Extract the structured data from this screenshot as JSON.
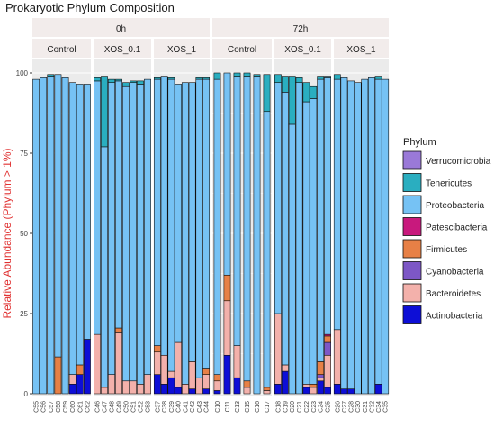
{
  "chart_data": {
    "type": "bar",
    "stacked": true,
    "title": "Prokaryotic Phylum Composition",
    "ylabel": "Relative Abundance (Phylum > 1%)",
    "xlabel": "",
    "ylim": [
      0,
      100
    ],
    "yticks": [
      0,
      25,
      50,
      75,
      100
    ],
    "grid": true,
    "legend_position": "right",
    "legend_title": "Phylum",
    "time_strips": [
      "0h",
      "72h"
    ],
    "treatment_labels": [
      "Control",
      "XOS_0.1",
      "XOS_1"
    ],
    "phyla": [
      {
        "name": "Verrucomicrobia",
        "color": "#9a79d8"
      },
      {
        "name": "Tenericutes",
        "color": "#2aaec0"
      },
      {
        "name": "Proteobacteria",
        "color": "#76c2f4"
      },
      {
        "name": "Patescibacteria",
        "color": "#c8197d"
      },
      {
        "name": "Firmicutes",
        "color": "#e78046"
      },
      {
        "name": "Cyanobacteria",
        "color": "#7d57c6"
      },
      {
        "name": "Bacteroidetes",
        "color": "#f3b1ab"
      },
      {
        "name": "Actinobacteria",
        "color": "#0d0ed6"
      }
    ],
    "panels": [
      {
        "time": "0h",
        "treatment": "Control",
        "samples": [
          {
            "id": "C55",
            "values": {
              "Actinobacteria": 0,
              "Bacteroidetes": 0,
              "Cyanobacteria": 0,
              "Firmicutes": 0,
              "Patescibacteria": 0,
              "Proteobacteria": 98,
              "Tenericutes": 0,
              "Verrucomicrobia": 0
            }
          },
          {
            "id": "C56",
            "values": {
              "Actinobacteria": 0,
              "Bacteroidetes": 0,
              "Cyanobacteria": 0,
              "Firmicutes": 0,
              "Patescibacteria": 0,
              "Proteobacteria": 98.5,
              "Tenericutes": 0,
              "Verrucomicrobia": 0
            }
          },
          {
            "id": "C57",
            "values": {
              "Actinobacteria": 0,
              "Bacteroidetes": 0,
              "Cyanobacteria": 0,
              "Firmicutes": 0,
              "Patescibacteria": 0,
              "Proteobacteria": 99,
              "Tenericutes": 0.5,
              "Verrucomicrobia": 0
            }
          },
          {
            "id": "C58",
            "values": {
              "Actinobacteria": 0,
              "Bacteroidetes": 0,
              "Cyanobacteria": 0,
              "Firmicutes": 11.5,
              "Patescibacteria": 0,
              "Proteobacteria": 88,
              "Tenericutes": 0,
              "Verrucomicrobia": 0
            }
          },
          {
            "id": "C59",
            "values": {
              "Actinobacteria": 0,
              "Bacteroidetes": 0,
              "Cyanobacteria": 0,
              "Firmicutes": 0,
              "Patescibacteria": 0,
              "Proteobacteria": 98.5,
              "Tenericutes": 0,
              "Verrucomicrobia": 0
            }
          },
          {
            "id": "C60",
            "values": {
              "Actinobacteria": 3,
              "Bacteroidetes": 3,
              "Cyanobacteria": 0,
              "Firmicutes": 0,
              "Patescibacteria": 0,
              "Proteobacteria": 91,
              "Tenericutes": 0,
              "Verrucomicrobia": 0
            }
          },
          {
            "id": "C61",
            "values": {
              "Actinobacteria": 6,
              "Bacteroidetes": 0,
              "Cyanobacteria": 0,
              "Firmicutes": 3,
              "Patescibacteria": 0,
              "Proteobacteria": 87.5,
              "Tenericutes": 0,
              "Verrucomicrobia": 0
            }
          },
          {
            "id": "C62",
            "values": {
              "Actinobacteria": 17,
              "Bacteroidetes": 0,
              "Cyanobacteria": 0,
              "Firmicutes": 0,
              "Patescibacteria": 0,
              "Proteobacteria": 79.5,
              "Tenericutes": 0,
              "Verrucomicrobia": 0
            }
          }
        ]
      },
      {
        "time": "0h",
        "treatment": "XOS_0.1",
        "samples": [
          {
            "id": "C46",
            "values": {
              "Actinobacteria": 0,
              "Bacteroidetes": 18.5,
              "Cyanobacteria": 0,
              "Firmicutes": 0,
              "Patescibacteria": 0,
              "Proteobacteria": 79,
              "Tenericutes": 1,
              "Verrucomicrobia": 0
            }
          },
          {
            "id": "C47",
            "values": {
              "Actinobacteria": 0,
              "Bacteroidetes": 2,
              "Cyanobacteria": 0,
              "Firmicutes": 0,
              "Patescibacteria": 0,
              "Proteobacteria": 75,
              "Tenericutes": 22,
              "Verrucomicrobia": 0
            }
          },
          {
            "id": "C48",
            "values": {
              "Actinobacteria": 0,
              "Bacteroidetes": 6,
              "Cyanobacteria": 0,
              "Firmicutes": 0,
              "Patescibacteria": 0,
              "Proteobacteria": 91,
              "Tenericutes": 1,
              "Verrucomicrobia": 0
            }
          },
          {
            "id": "C49",
            "values": {
              "Actinobacteria": 0,
              "Bacteroidetes": 19,
              "Cyanobacteria": 0,
              "Firmicutes": 1.5,
              "Patescibacteria": 0,
              "Proteobacteria": 77,
              "Tenericutes": 0.5,
              "Verrucomicrobia": 0
            }
          },
          {
            "id": "C50",
            "values": {
              "Actinobacteria": 0,
              "Bacteroidetes": 4,
              "Cyanobacteria": 0,
              "Firmicutes": 0,
              "Patescibacteria": 0,
              "Proteobacteria": 92,
              "Tenericutes": 1,
              "Verrucomicrobia": 0
            }
          },
          {
            "id": "C51",
            "values": {
              "Actinobacteria": 0,
              "Bacteroidetes": 4,
              "Cyanobacteria": 0,
              "Firmicutes": 0,
              "Patescibacteria": 0,
              "Proteobacteria": 93,
              "Tenericutes": 0.5,
              "Verrucomicrobia": 0
            }
          },
          {
            "id": "C52",
            "values": {
              "Actinobacteria": 0,
              "Bacteroidetes": 3,
              "Cyanobacteria": 0,
              "Firmicutes": 0,
              "Patescibacteria": 0,
              "Proteobacteria": 93.5,
              "Tenericutes": 1,
              "Verrucomicrobia": 0
            }
          },
          {
            "id": "C53",
            "values": {
              "Actinobacteria": 0,
              "Bacteroidetes": 6,
              "Cyanobacteria": 0,
              "Firmicutes": 0,
              "Patescibacteria": 0,
              "Proteobacteria": 92,
              "Tenericutes": 0,
              "Verrucomicrobia": 0
            }
          }
        ]
      },
      {
        "time": "0h",
        "treatment": "XOS_1",
        "samples": [
          {
            "id": "C37",
            "values": {
              "Actinobacteria": 6,
              "Bacteroidetes": 7,
              "Cyanobacteria": 0,
              "Firmicutes": 2,
              "Patescibacteria": 0,
              "Proteobacteria": 83,
              "Tenericutes": 0.5,
              "Verrucomicrobia": 0
            }
          },
          {
            "id": "C38",
            "values": {
              "Actinobacteria": 3,
              "Bacteroidetes": 9,
              "Cyanobacteria": 0,
              "Firmicutes": 0,
              "Patescibacteria": 0,
              "Proteobacteria": 87,
              "Tenericutes": 0,
              "Verrucomicrobia": 0
            }
          },
          {
            "id": "C39",
            "values": {
              "Actinobacteria": 5,
              "Bacteroidetes": 2,
              "Cyanobacteria": 0,
              "Firmicutes": 0,
              "Patescibacteria": 0,
              "Proteobacteria": 91,
              "Tenericutes": 0.5,
              "Verrucomicrobia": 0
            }
          },
          {
            "id": "C40",
            "values": {
              "Actinobacteria": 2,
              "Bacteroidetes": 14,
              "Cyanobacteria": 0,
              "Firmicutes": 0,
              "Patescibacteria": 0,
              "Proteobacteria": 80.5,
              "Tenericutes": 0,
              "Verrucomicrobia": 0
            }
          },
          {
            "id": "C41",
            "values": {
              "Actinobacteria": 0,
              "Bacteroidetes": 3,
              "Cyanobacteria": 0,
              "Firmicutes": 0,
              "Patescibacteria": 0,
              "Proteobacteria": 94,
              "Tenericutes": 0,
              "Verrucomicrobia": 0
            }
          },
          {
            "id": "C42",
            "values": {
              "Actinobacteria": 1.5,
              "Bacteroidetes": 8.5,
              "Cyanobacteria": 0,
              "Firmicutes": 0,
              "Patescibacteria": 0,
              "Proteobacteria": 87,
              "Tenericutes": 0,
              "Verrucomicrobia": 0
            }
          },
          {
            "id": "C43",
            "values": {
              "Actinobacteria": 0,
              "Bacteroidetes": 5,
              "Cyanobacteria": 0,
              "Firmicutes": 0,
              "Patescibacteria": 0,
              "Proteobacteria": 93,
              "Tenericutes": 0.5,
              "Verrucomicrobia": 0
            }
          },
          {
            "id": "C44",
            "values": {
              "Actinobacteria": 1.5,
              "Bacteroidetes": 4.5,
              "Cyanobacteria": 0,
              "Firmicutes": 2,
              "Patescibacteria": 0,
              "Proteobacteria": 90,
              "Tenericutes": 0.5,
              "Verrucomicrobia": 0
            }
          }
        ]
      },
      {
        "time": "72h",
        "treatment": "Control",
        "samples": [
          {
            "id": "C10",
            "values": {
              "Actinobacteria": 1,
              "Bacteroidetes": 3,
              "Cyanobacteria": 0,
              "Firmicutes": 2,
              "Patescibacteria": 0,
              "Proteobacteria": 92,
              "Tenericutes": 2,
              "Verrucomicrobia": 0
            }
          },
          {
            "id": "C11",
            "values": {
              "Actinobacteria": 12,
              "Bacteroidetes": 17,
              "Cyanobacteria": 0,
              "Firmicutes": 8,
              "Patescibacteria": 0,
              "Proteobacteria": 63,
              "Tenericutes": 0,
              "Verrucomicrobia": 0
            }
          },
          {
            "id": "C13",
            "values": {
              "Actinobacteria": 5,
              "Bacteroidetes": 10,
              "Cyanobacteria": 0,
              "Firmicutes": 0,
              "Patescibacteria": 0,
              "Proteobacteria": 84,
              "Tenericutes": 1,
              "Verrucomicrobia": 0
            }
          },
          {
            "id": "C15",
            "values": {
              "Actinobacteria": 0,
              "Bacteroidetes": 2,
              "Cyanobacteria": 0,
              "Firmicutes": 2,
              "Patescibacteria": 0,
              "Proteobacteria": 95,
              "Tenericutes": 1,
              "Verrucomicrobia": 0
            }
          },
          {
            "id": "C16",
            "values": {
              "Actinobacteria": 0,
              "Bacteroidetes": 0,
              "Cyanobacteria": 0,
              "Firmicutes": 0,
              "Patescibacteria": 0,
              "Proteobacteria": 99,
              "Tenericutes": 0.5,
              "Verrucomicrobia": 0
            }
          },
          {
            "id": "C17",
            "values": {
              "Actinobacteria": 0,
              "Bacteroidetes": 1,
              "Cyanobacteria": 0,
              "Firmicutes": 1,
              "Patescibacteria": 0,
              "Proteobacteria": 86,
              "Tenericutes": 11.5,
              "Verrucomicrobia": 0
            }
          }
        ]
      },
      {
        "time": "72h",
        "treatment": "XOS_0.1",
        "samples": [
          {
            "id": "C18",
            "values": {
              "Actinobacteria": 3,
              "Bacteroidetes": 22,
              "Cyanobacteria": 0,
              "Firmicutes": 0,
              "Patescibacteria": 0,
              "Proteobacteria": 72,
              "Tenericutes": 2.5,
              "Verrucomicrobia": 0
            }
          },
          {
            "id": "C19",
            "values": {
              "Actinobacteria": 7,
              "Bacteroidetes": 2,
              "Cyanobacteria": 0,
              "Firmicutes": 0,
              "Patescibacteria": 0,
              "Proteobacteria": 85,
              "Tenericutes": 5,
              "Verrucomicrobia": 0
            }
          },
          {
            "id": "C20",
            "values": {
              "Actinobacteria": 0,
              "Bacteroidetes": 0,
              "Cyanobacteria": 0,
              "Firmicutes": 0,
              "Patescibacteria": 0,
              "Proteobacteria": 84,
              "Tenericutes": 15,
              "Verrucomicrobia": 0
            }
          },
          {
            "id": "C21",
            "values": {
              "Actinobacteria": 0,
              "Bacteroidetes": 0,
              "Cyanobacteria": 0,
              "Firmicutes": 0,
              "Patescibacteria": 0,
              "Proteobacteria": 97,
              "Tenericutes": 1.5,
              "Verrucomicrobia": 0
            }
          },
          {
            "id": "C22",
            "values": {
              "Actinobacteria": 2,
              "Bacteroidetes": 1,
              "Cyanobacteria": 0,
              "Firmicutes": 0,
              "Patescibacteria": 0,
              "Proteobacteria": 88,
              "Tenericutes": 6,
              "Verrucomicrobia": 0
            }
          },
          {
            "id": "C23",
            "values": {
              "Actinobacteria": 0,
              "Bacteroidetes": 2,
              "Cyanobacteria": 0,
              "Firmicutes": 1,
              "Patescibacteria": 0,
              "Proteobacteria": 89,
              "Tenericutes": 4,
              "Verrucomicrobia": 0
            }
          },
          {
            "id": "C24",
            "values": {
              "Actinobacteria": 4,
              "Bacteroidetes": 1,
              "Cyanobacteria": 1,
              "Firmicutes": 4,
              "Patescibacteria": 0,
              "Proteobacteria": 88,
              "Tenericutes": 1,
              "Verrucomicrobia": 0
            }
          },
          {
            "id": "C25",
            "values": {
              "Actinobacteria": 2,
              "Bacteroidetes": 10,
              "Cyanobacteria": 4,
              "Firmicutes": 2,
              "Patescibacteria": 0.5,
              "Proteobacteria": 80,
              "Tenericutes": 0.5,
              "Verrucomicrobia": 0
            }
          }
        ]
      },
      {
        "time": "72h",
        "treatment": "XOS_1",
        "samples": [
          {
            "id": "C26",
            "values": {
              "Actinobacteria": 3,
              "Bacteroidetes": 17,
              "Cyanobacteria": 0,
              "Firmicutes": 0,
              "Patescibacteria": 0,
              "Proteobacteria": 78,
              "Tenericutes": 1.5,
              "Verrucomicrobia": 0
            }
          },
          {
            "id": "C27",
            "values": {
              "Actinobacteria": 1.5,
              "Bacteroidetes": 0,
              "Cyanobacteria": 0,
              "Firmicutes": 0,
              "Patescibacteria": 0,
              "Proteobacteria": 97,
              "Tenericutes": 0,
              "Verrucomicrobia": 0
            }
          },
          {
            "id": "C28",
            "values": {
              "Actinobacteria": 1.5,
              "Bacteroidetes": 0,
              "Cyanobacteria": 0,
              "Firmicutes": 0,
              "Patescibacteria": 0,
              "Proteobacteria": 96,
              "Tenericutes": 0,
              "Verrucomicrobia": 0
            }
          },
          {
            "id": "C30",
            "values": {
              "Actinobacteria": 0,
              "Bacteroidetes": 0,
              "Cyanobacteria": 0,
              "Firmicutes": 0,
              "Patescibacteria": 0,
              "Proteobacteria": 97,
              "Tenericutes": 0,
              "Verrucomicrobia": 0
            }
          },
          {
            "id": "C31",
            "values": {
              "Actinobacteria": 0,
              "Bacteroidetes": 0,
              "Cyanobacteria": 0,
              "Firmicutes": 0,
              "Patescibacteria": 0,
              "Proteobacteria": 98,
              "Tenericutes": 0,
              "Verrucomicrobia": 0
            }
          },
          {
            "id": "C32",
            "values": {
              "Actinobacteria": 0,
              "Bacteroidetes": 0,
              "Cyanobacteria": 0,
              "Firmicutes": 0,
              "Patescibacteria": 0,
              "Proteobacteria": 98.5,
              "Tenericutes": 0,
              "Verrucomicrobia": 0
            }
          },
          {
            "id": "C34",
            "values": {
              "Actinobacteria": 3,
              "Bacteroidetes": 0,
              "Cyanobacteria": 0,
              "Firmicutes": 0,
              "Patescibacteria": 0,
              "Proteobacteria": 95,
              "Tenericutes": 1,
              "Verrucomicrobia": 0
            }
          },
          {
            "id": "C35",
            "values": {
              "Actinobacteria": 0,
              "Bacteroidetes": 0,
              "Cyanobacteria": 0,
              "Firmicutes": 0,
              "Patescibacteria": 0,
              "Proteobacteria": 98,
              "Tenericutes": 0,
              "Verrucomicrobia": 0
            }
          }
        ]
      }
    ]
  }
}
